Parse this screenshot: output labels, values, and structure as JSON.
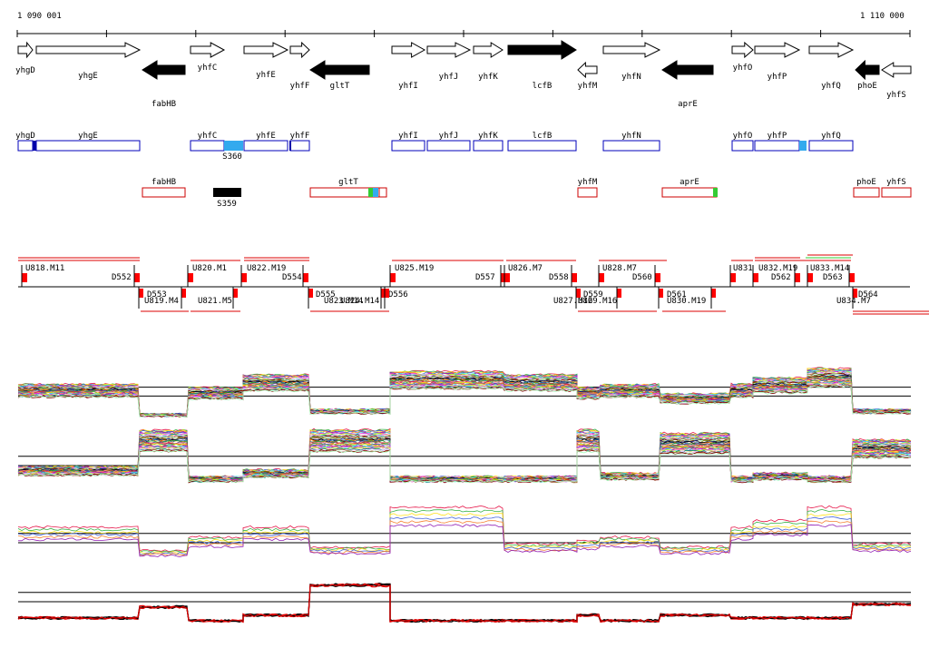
{
  "coordinates": {
    "start": "1 090 001",
    "end": "1 110 000"
  },
  "genes": [
    {
      "name": "yhgD",
      "strand": "+",
      "filled": false
    },
    {
      "name": "yhgE",
      "strand": "+",
      "filled": false
    },
    {
      "name": "fabHB",
      "strand": "-",
      "filled": true
    },
    {
      "name": "yhfC",
      "strand": "+",
      "filled": false
    },
    {
      "name": "yhfE",
      "strand": "+",
      "filled": false
    },
    {
      "name": "yhfF",
      "strand": "+",
      "filled": false
    },
    {
      "name": "gltT",
      "strand": "-",
      "filled": true
    },
    {
      "name": "yhfI",
      "strand": "+",
      "filled": false
    },
    {
      "name": "yhfJ",
      "strand": "+",
      "filled": false
    },
    {
      "name": "yhfK",
      "strand": "+",
      "filled": false
    },
    {
      "name": "lcfB",
      "strand": "+",
      "filled": true
    },
    {
      "name": "yhfM",
      "strand": "-",
      "filled": false
    },
    {
      "name": "yhfN",
      "strand": "+",
      "filled": false
    },
    {
      "name": "aprE",
      "strand": "-",
      "filled": true
    },
    {
      "name": "yhfO",
      "strand": "+",
      "filled": false
    },
    {
      "name": "yhfP",
      "strand": "+",
      "filled": false
    },
    {
      "name": "yhfQ",
      "strand": "+",
      "filled": false
    },
    {
      "name": "phoE",
      "strand": "-",
      "filled": true
    },
    {
      "name": "yhfS",
      "strand": "-",
      "filled": false
    }
  ],
  "operons_plus": [
    "yhgD",
    "yhgE",
    "yhfC",
    "yhfE",
    "yhfF",
    "yhfI",
    "yhfJ",
    "yhfK",
    "lcfB",
    "yhfN",
    "yhfO",
    "yhfP",
    "yhfQ"
  ],
  "operons_minus": [
    "fabHB",
    "gltT",
    "yhfM",
    "aprE",
    "phoE",
    "yhfS"
  ],
  "regulatory_sites": [
    "S360",
    "S359"
  ],
  "transcript_segments_upper": [
    "U818.M11",
    "D552",
    "U820.M1",
    "U822.M19",
    "D554",
    "U825.M19",
    "D557",
    "U826.M7",
    "D558",
    "U828.M7",
    "D560",
    "U831",
    "U832.M19",
    "U833.M14",
    "D562",
    "D563"
  ],
  "transcript_segments_lower": [
    "D553",
    "U819.M4",
    "U821.M5",
    "D555",
    "U823.M14",
    "U824.M14",
    "D556",
    "U827.M16",
    "U829.M16",
    "D559",
    "D561",
    "U830.M19",
    "D564",
    "U834.M7"
  ],
  "colors": {
    "plus_operon": "#0000bb",
    "minus_operon": "#cc0000",
    "site_cyan": "#33aaee",
    "site_black": "#000000",
    "site_green": "#33cc33",
    "segment_marker": "#ff0000"
  },
  "expression_panels": [
    {
      "kind": "multi-condition",
      "strand": "+"
    },
    {
      "kind": "multi-condition",
      "strand": "-"
    },
    {
      "kind": "averaged",
      "strand": "+"
    },
    {
      "kind": "averaged",
      "strand": "-"
    }
  ]
}
